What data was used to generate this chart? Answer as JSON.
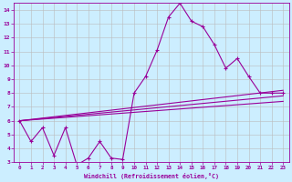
{
  "x_label": "Windchill (Refroidissement éolien,°C)",
  "background_color": "#cceeff",
  "line_color": "#990099",
  "grid_color": "#bbbbbb",
  "xlim": [
    -0.5,
    23.5
  ],
  "ylim": [
    3,
    14.5
  ],
  "yticks": [
    3,
    4,
    5,
    6,
    7,
    8,
    9,
    10,
    11,
    12,
    13,
    14
  ],
  "xticks": [
    0,
    1,
    2,
    3,
    4,
    5,
    6,
    7,
    8,
    9,
    10,
    11,
    12,
    13,
    14,
    15,
    16,
    17,
    18,
    19,
    20,
    21,
    22,
    23
  ],
  "series1_x": [
    0,
    1,
    2,
    3,
    4,
    5,
    6,
    7,
    8,
    9,
    10,
    11,
    12,
    13,
    14,
    15,
    16,
    17,
    18,
    19,
    20,
    21,
    22,
    23
  ],
  "series1_y": [
    6.0,
    4.5,
    5.5,
    3.5,
    5.5,
    2.8,
    3.3,
    4.5,
    3.3,
    3.2,
    8.0,
    9.2,
    11.1,
    13.5,
    14.5,
    13.2,
    12.8,
    11.5,
    9.8,
    10.5,
    9.2,
    8.0,
    8.0,
    8.0
  ],
  "series2_x": [
    0,
    23
  ],
  "series2_y": [
    6.0,
    8.2
  ],
  "series3_x": [
    0,
    23
  ],
  "series3_y": [
    6.0,
    7.8
  ],
  "series4_x": [
    0,
    23
  ],
  "series4_y": [
    6.0,
    7.4
  ]
}
